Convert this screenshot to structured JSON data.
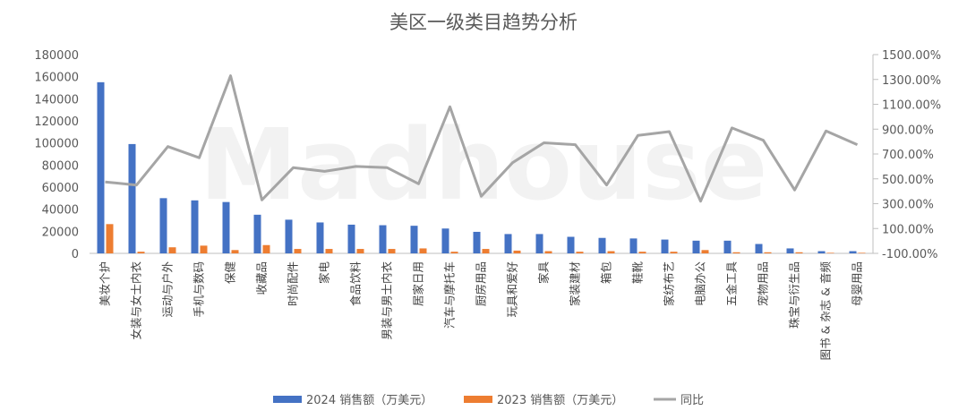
{
  "chart_data": {
    "type": "bar",
    "title": "美区一级类目趋势分析",
    "watermark": "Madhouse",
    "categories": [
      "美妆个护",
      "女装与女士内衣",
      "运动与户外",
      "手机与数码",
      "保健",
      "收藏品",
      "时尚配件",
      "家电",
      "食品饮料",
      "男装与男士内衣",
      "居家日用",
      "汽车与摩托车",
      "厨房用品",
      "玩具和爱好",
      "家具",
      "家装建材",
      "箱包",
      "鞋靴",
      "家纺布艺",
      "电脑办公",
      "五金工具",
      "宠物用品",
      "珠宝与衍生品",
      "图书 & 杂志 & 音频",
      "母婴用品"
    ],
    "series": [
      {
        "name": "2024 销售额（万美元）",
        "axis": "left",
        "color": "#4472c4",
        "values": [
          155000,
          99000,
          50000,
          48000,
          46500,
          35000,
          30500,
          28000,
          26000,
          25500,
          25000,
          22500,
          19500,
          17500,
          17500,
          15000,
          14000,
          13500,
          12500,
          11500,
          11500,
          8500,
          4500,
          2000,
          2000
        ]
      },
      {
        "name": "2023 销售额（万美元）",
        "axis": "left",
        "color": "#ed7d31",
        "values": [
          26500,
          1500,
          5500,
          7000,
          3000,
          7500,
          4000,
          4000,
          4000,
          4000,
          4500,
          1500,
          4000,
          2500,
          2000,
          1500,
          2000,
          1500,
          1500,
          3000,
          1000,
          1000,
          1000,
          500,
          500
        ]
      },
      {
        "name": "同比",
        "axis": "right",
        "color": "#a5a5a5",
        "type": "line",
        "values": [
          4.75,
          4.5,
          7.6,
          6.7,
          13.3,
          3.3,
          5.9,
          5.6,
          6.0,
          5.9,
          4.6,
          10.8,
          3.6,
          6.3,
          7.9,
          7.75,
          4.5,
          8.5,
          8.8,
          3.2,
          9.1,
          8.1,
          4.1,
          8.85,
          7.75
        ]
      }
    ],
    "y_left": {
      "min": 0,
      "max": 180000,
      "step": 20000,
      "ticks": [
        "0",
        "20000",
        "40000",
        "60000",
        "80000",
        "100000",
        "120000",
        "140000",
        "160000",
        "180000"
      ]
    },
    "y_right": {
      "min": -1,
      "max": 15,
      "step": 2,
      "ticks": [
        "-100.00%",
        "100.00%",
        "300.00%",
        "500.00%",
        "700.00%",
        "900.00%",
        "1100.00%",
        "1300.00%",
        "1500.00%"
      ]
    },
    "legend": {
      "placement": "bottom",
      "items": [
        "2024 销售额（万美元）",
        "2023 销售额（万美元）",
        "同比"
      ]
    },
    "grid": false
  }
}
